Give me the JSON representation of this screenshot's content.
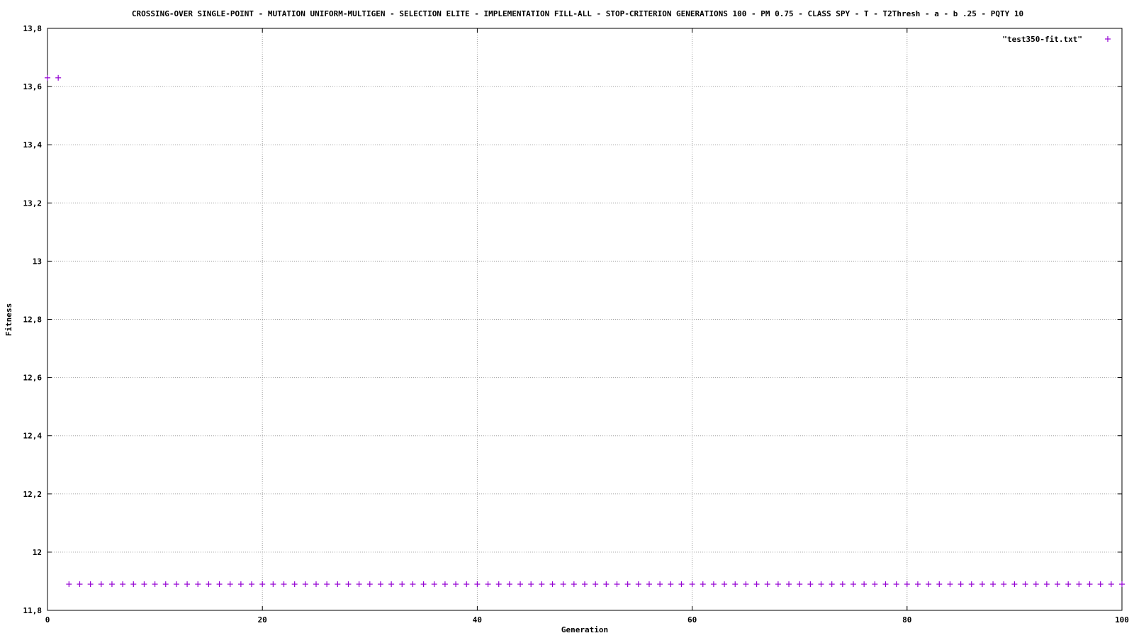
{
  "chart_data": {
    "type": "scatter",
    "title": "CROSSING-OVER SINGLE-POINT - MUTATION UNIFORM-MULTIGEN - SELECTION ELITE    - IMPLEMENTATION FILL-ALL - STOP-CRITERION GENERATIONS 100 - PM 0.75 - CLASS SPY - T  - T2Thresh  - a  - b .25 - PQTY 10",
    "xlabel": "Generation",
    "ylabel": "Fitness",
    "xlim": [
      0,
      100
    ],
    "ylim": [
      11.8,
      13.8
    ],
    "x_ticks": [
      "0",
      "20",
      "40",
      "60",
      "80",
      "100"
    ],
    "y_ticks": [
      "11,8",
      "12",
      "12,2",
      "12,4",
      "12,6",
      "12,8",
      "13",
      "13,2",
      "13,4",
      "13,6",
      "13,8"
    ],
    "grid": true,
    "legend_position": "top-right",
    "marker": "plus",
    "series": [
      {
        "name": "\"test350-fit.txt\"",
        "color": "#9400d3",
        "points": [
          [
            0,
            13.63
          ],
          [
            1,
            13.63
          ],
          [
            2,
            11.89
          ],
          [
            3,
            11.89
          ],
          [
            4,
            11.89
          ],
          [
            5,
            11.89
          ],
          [
            6,
            11.89
          ],
          [
            7,
            11.89
          ],
          [
            8,
            11.89
          ],
          [
            9,
            11.89
          ],
          [
            10,
            11.89
          ],
          [
            11,
            11.89
          ],
          [
            12,
            11.89
          ],
          [
            13,
            11.89
          ],
          [
            14,
            11.89
          ],
          [
            15,
            11.89
          ],
          [
            16,
            11.89
          ],
          [
            17,
            11.89
          ],
          [
            18,
            11.89
          ],
          [
            19,
            11.89
          ],
          [
            20,
            11.89
          ],
          [
            21,
            11.89
          ],
          [
            22,
            11.89
          ],
          [
            23,
            11.89
          ],
          [
            24,
            11.89
          ],
          [
            25,
            11.89
          ],
          [
            26,
            11.89
          ],
          [
            27,
            11.89
          ],
          [
            28,
            11.89
          ],
          [
            29,
            11.89
          ],
          [
            30,
            11.89
          ],
          [
            31,
            11.89
          ],
          [
            32,
            11.89
          ],
          [
            33,
            11.89
          ],
          [
            34,
            11.89
          ],
          [
            35,
            11.89
          ],
          [
            36,
            11.89
          ],
          [
            37,
            11.89
          ],
          [
            38,
            11.89
          ],
          [
            39,
            11.89
          ],
          [
            40,
            11.89
          ],
          [
            41,
            11.89
          ],
          [
            42,
            11.89
          ],
          [
            43,
            11.89
          ],
          [
            44,
            11.89
          ],
          [
            45,
            11.89
          ],
          [
            46,
            11.89
          ],
          [
            47,
            11.89
          ],
          [
            48,
            11.89
          ],
          [
            49,
            11.89
          ],
          [
            50,
            11.89
          ],
          [
            51,
            11.89
          ],
          [
            52,
            11.89
          ],
          [
            53,
            11.89
          ],
          [
            54,
            11.89
          ],
          [
            55,
            11.89
          ],
          [
            56,
            11.89
          ],
          [
            57,
            11.89
          ],
          [
            58,
            11.89
          ],
          [
            59,
            11.89
          ],
          [
            60,
            11.89
          ],
          [
            61,
            11.89
          ],
          [
            62,
            11.89
          ],
          [
            63,
            11.89
          ],
          [
            64,
            11.89
          ],
          [
            65,
            11.89
          ],
          [
            66,
            11.89
          ],
          [
            67,
            11.89
          ],
          [
            68,
            11.89
          ],
          [
            69,
            11.89
          ],
          [
            70,
            11.89
          ],
          [
            71,
            11.89
          ],
          [
            72,
            11.89
          ],
          [
            73,
            11.89
          ],
          [
            74,
            11.89
          ],
          [
            75,
            11.89
          ],
          [
            76,
            11.89
          ],
          [
            77,
            11.89
          ],
          [
            78,
            11.89
          ],
          [
            79,
            11.89
          ],
          [
            80,
            11.89
          ],
          [
            81,
            11.89
          ],
          [
            82,
            11.89
          ],
          [
            83,
            11.89
          ],
          [
            84,
            11.89
          ],
          [
            85,
            11.89
          ],
          [
            86,
            11.89
          ],
          [
            87,
            11.89
          ],
          [
            88,
            11.89
          ],
          [
            89,
            11.89
          ],
          [
            90,
            11.89
          ],
          [
            91,
            11.89
          ],
          [
            92,
            11.89
          ],
          [
            93,
            11.89
          ],
          [
            94,
            11.89
          ],
          [
            95,
            11.89
          ],
          [
            96,
            11.89
          ],
          [
            97,
            11.89
          ],
          [
            98,
            11.89
          ],
          [
            99,
            11.89
          ],
          [
            100,
            11.89
          ]
        ]
      }
    ]
  }
}
